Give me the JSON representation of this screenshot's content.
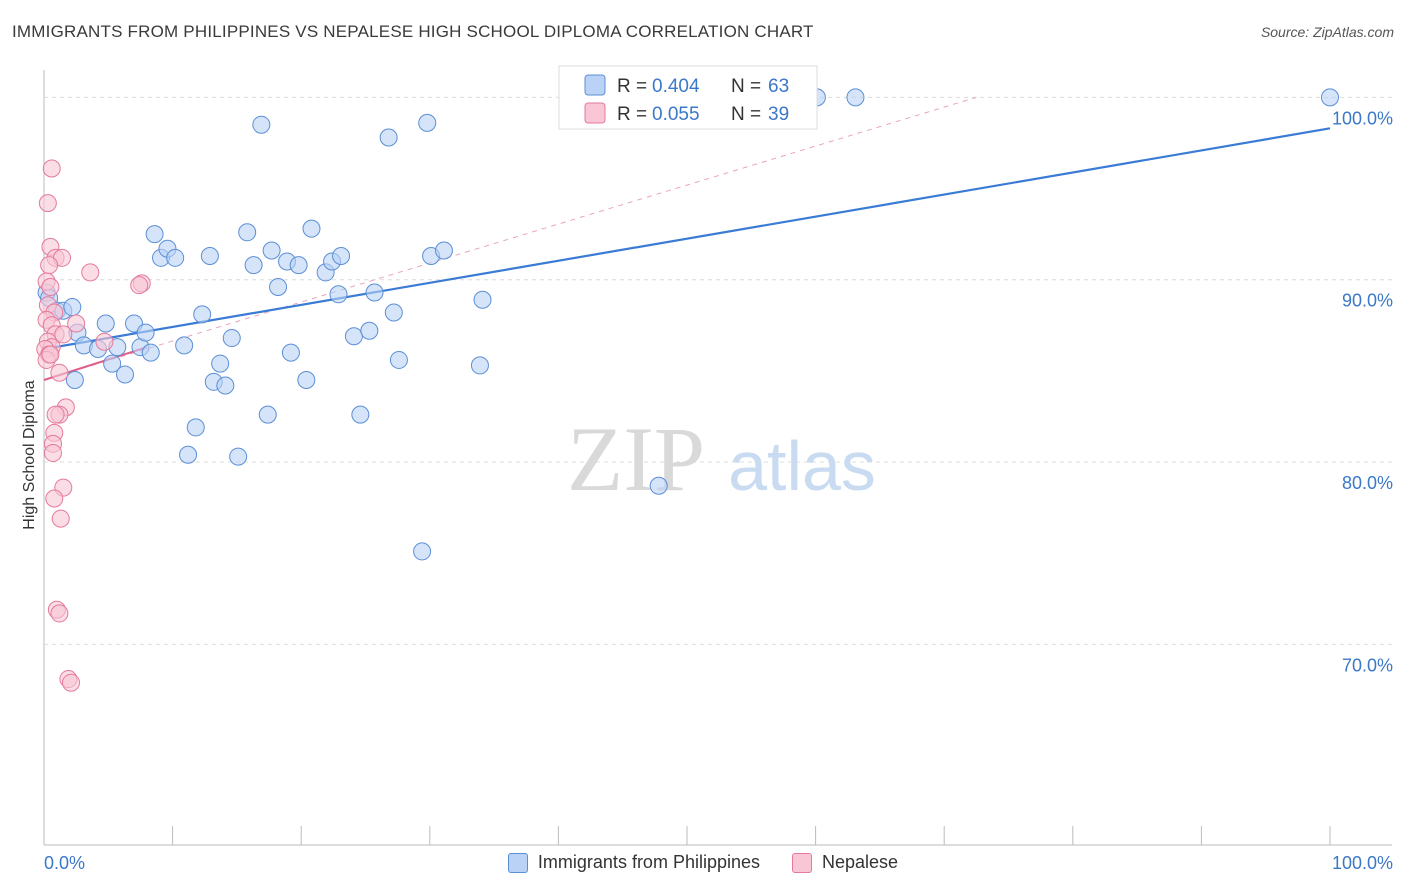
{
  "chart_data": {
    "type": "scatter",
    "title": "IMMIGRANTS FROM PHILIPPINES VS NEPALESE HIGH SCHOOL DIPLOMA CORRELATION CHART",
    "source": "Source: ZipAtlas.com",
    "ylabel": "High School Diploma",
    "xlabel": "",
    "xlim": [
      0,
      100
    ],
    "ylim": [
      59.0,
      101.5
    ],
    "x_tick_labels": [
      "0.0%",
      "100.0%"
    ],
    "y_ticks": [
      {
        "value": 100,
        "label": "100.0%"
      },
      {
        "value": 90,
        "label": "90.0%"
      },
      {
        "value": 80,
        "label": "80.0%"
      },
      {
        "value": 70,
        "label": "70.0%"
      }
    ],
    "watermark": {
      "part1": "ZIP",
      "part2": "atlas"
    },
    "stats_legend": [
      {
        "r_label": "R =",
        "r_value": "0.404",
        "n_label": "N =",
        "n_value": "63",
        "color": "#5b8fd6"
      },
      {
        "r_label": "R =",
        "r_value": "0.055",
        "n_label": "N =",
        "n_value": "39",
        "color": "#e57a9c"
      }
    ],
    "series": [
      {
        "name": "Immigrants from Philippines",
        "color": "#5b8fd6",
        "fill": "#b9d2f5",
        "trend": {
          "x": [
            0,
            100
          ],
          "y": [
            86.2,
            98.3
          ]
        },
        "points": [
          {
            "x": 0.2,
            "y": 89.3
          },
          {
            "x": 0.4,
            "y": 89.0
          },
          {
            "x": 1.0,
            "y": 88.3
          },
          {
            "x": 1.5,
            "y": 88.3
          },
          {
            "x": 2.2,
            "y": 88.5
          },
          {
            "x": 2.6,
            "y": 87.1
          },
          {
            "x": 3.1,
            "y": 86.4
          },
          {
            "x": 2.4,
            "y": 84.5
          },
          {
            "x": 4.2,
            "y": 86.2
          },
          {
            "x": 4.8,
            "y": 87.6
          },
          {
            "x": 5.3,
            "y": 85.4
          },
          {
            "x": 5.7,
            "y": 86.3
          },
          {
            "x": 6.3,
            "y": 84.8
          },
          {
            "x": 7.0,
            "y": 87.6
          },
          {
            "x": 7.5,
            "y": 86.3
          },
          {
            "x": 7.9,
            "y": 87.1
          },
          {
            "x": 8.3,
            "y": 86.0
          },
          {
            "x": 8.6,
            "y": 92.5
          },
          {
            "x": 9.1,
            "y": 91.2
          },
          {
            "x": 9.6,
            "y": 91.7
          },
          {
            "x": 10.2,
            "y": 91.2
          },
          {
            "x": 10.9,
            "y": 86.4
          },
          {
            "x": 11.2,
            "y": 80.4
          },
          {
            "x": 11.8,
            "y": 81.9
          },
          {
            "x": 12.3,
            "y": 88.1
          },
          {
            "x": 12.9,
            "y": 91.3
          },
          {
            "x": 13.2,
            "y": 84.4
          },
          {
            "x": 13.7,
            "y": 85.4
          },
          {
            "x": 14.1,
            "y": 84.2
          },
          {
            "x": 14.6,
            "y": 86.8
          },
          {
            "x": 15.1,
            "y": 80.3
          },
          {
            "x": 15.8,
            "y": 92.6
          },
          {
            "x": 16.3,
            "y": 90.8
          },
          {
            "x": 16.9,
            "y": 98.5
          },
          {
            "x": 17.4,
            "y": 82.6
          },
          {
            "x": 17.7,
            "y": 91.6
          },
          {
            "x": 18.2,
            "y": 89.6
          },
          {
            "x": 18.9,
            "y": 91.0
          },
          {
            "x": 19.2,
            "y": 86.0
          },
          {
            "x": 19.8,
            "y": 90.8
          },
          {
            "x": 20.4,
            "y": 84.5
          },
          {
            "x": 20.8,
            "y": 92.8
          },
          {
            "x": 21.9,
            "y": 90.4
          },
          {
            "x": 22.4,
            "y": 91.0
          },
          {
            "x": 22.9,
            "y": 89.2
          },
          {
            "x": 23.1,
            "y": 91.3
          },
          {
            "x": 24.1,
            "y": 86.9
          },
          {
            "x": 24.6,
            "y": 82.6
          },
          {
            "x": 25.3,
            "y": 87.2
          },
          {
            "x": 25.7,
            "y": 89.3
          },
          {
            "x": 26.8,
            "y": 97.8
          },
          {
            "x": 27.2,
            "y": 88.2
          },
          {
            "x": 27.6,
            "y": 85.6
          },
          {
            "x": 29.4,
            "y": 75.1
          },
          {
            "x": 29.8,
            "y": 98.6
          },
          {
            "x": 30.1,
            "y": 91.3
          },
          {
            "x": 31.1,
            "y": 91.6
          },
          {
            "x": 33.9,
            "y": 85.3
          },
          {
            "x": 34.1,
            "y": 88.9
          },
          {
            "x": 47.8,
            "y": 78.7
          },
          {
            "x": 60.1,
            "y": 100.0
          },
          {
            "x": 63.1,
            "y": 100.0
          },
          {
            "x": 100.0,
            "y": 100.0
          }
        ]
      },
      {
        "name": "Nepalese",
        "color": "#e57a9c",
        "fill": "#f9c6d6",
        "trend": {
          "x": [
            0,
            8
          ],
          "y": [
            84.5,
            86.3
          ]
        },
        "trend_extended": {
          "x": [
            0,
            72.5
          ],
          "y": [
            84.5,
            100.0
          ]
        },
        "points": [
          {
            "x": 0.3,
            "y": 94.2
          },
          {
            "x": 0.6,
            "y": 96.1
          },
          {
            "x": 0.5,
            "y": 91.8
          },
          {
            "x": 0.9,
            "y": 91.2
          },
          {
            "x": 1.4,
            "y": 91.2
          },
          {
            "x": 0.4,
            "y": 90.8
          },
          {
            "x": 0.2,
            "y": 89.9
          },
          {
            "x": 0.5,
            "y": 89.6
          },
          {
            "x": 0.3,
            "y": 88.6
          },
          {
            "x": 0.8,
            "y": 88.2
          },
          {
            "x": 0.2,
            "y": 87.8
          },
          {
            "x": 0.6,
            "y": 87.5
          },
          {
            "x": 0.9,
            "y": 87.0
          },
          {
            "x": 1.5,
            "y": 87.0
          },
          {
            "x": 0.3,
            "y": 86.6
          },
          {
            "x": 0.6,
            "y": 86.3
          },
          {
            "x": 0.1,
            "y": 86.2
          },
          {
            "x": 0.4,
            "y": 85.9
          },
          {
            "x": 0.2,
            "y": 85.6
          },
          {
            "x": 1.2,
            "y": 84.9
          },
          {
            "x": 2.5,
            "y": 87.6
          },
          {
            "x": 3.6,
            "y": 90.4
          },
          {
            "x": 4.7,
            "y": 86.6
          },
          {
            "x": 7.6,
            "y": 89.8
          },
          {
            "x": 7.4,
            "y": 89.7
          },
          {
            "x": 1.7,
            "y": 83.0
          },
          {
            "x": 1.2,
            "y": 82.6
          },
          {
            "x": 0.9,
            "y": 82.6
          },
          {
            "x": 0.8,
            "y": 81.6
          },
          {
            "x": 0.7,
            "y": 81.0
          },
          {
            "x": 0.7,
            "y": 80.5
          },
          {
            "x": 1.5,
            "y": 78.6
          },
          {
            "x": 0.8,
            "y": 78.0
          },
          {
            "x": 1.3,
            "y": 76.9
          },
          {
            "x": 1.0,
            "y": 71.9
          },
          {
            "x": 1.2,
            "y": 71.7
          },
          {
            "x": 1.9,
            "y": 68.1
          },
          {
            "x": 2.1,
            "y": 67.9
          },
          {
            "x": 0.5,
            "y": 85.9
          }
        ]
      }
    ]
  }
}
